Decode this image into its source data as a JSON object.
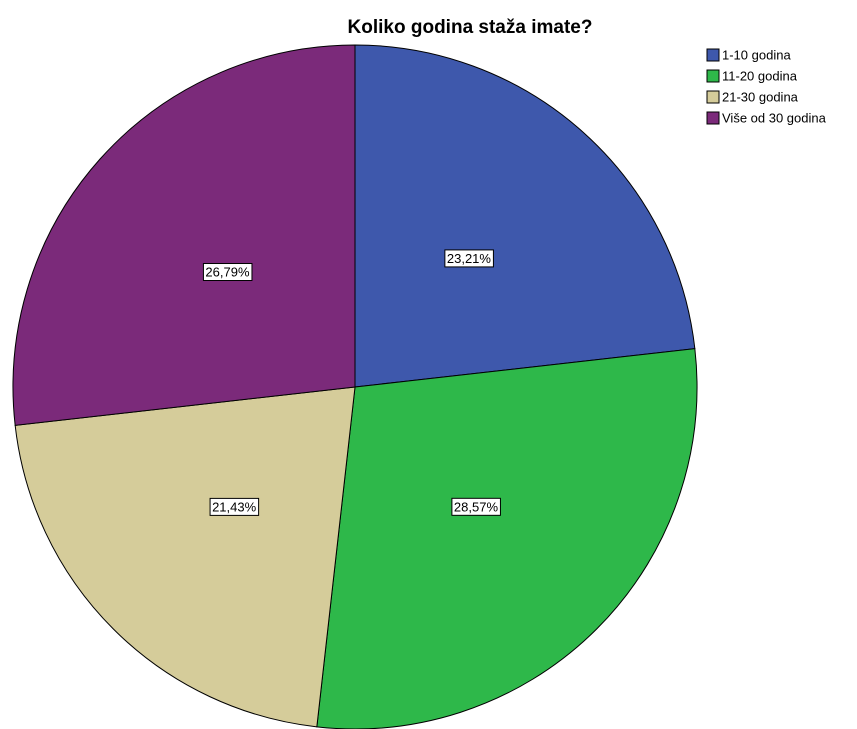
{
  "chart_data": {
    "type": "pie",
    "title": "Koliko godina staža imate?",
    "categories": [
      "1-10 godina",
      "11-20 godina",
      "21-30 godina",
      "Više od 30 godina"
    ],
    "values": [
      23.21,
      28.57,
      21.43,
      26.79
    ],
    "value_labels": [
      "23,21%",
      "28,57%",
      "21,43%",
      "26,79%"
    ],
    "colors": [
      "#3e58ac",
      "#2eb84a",
      "#d5cc9a",
      "#7b2a7a"
    ],
    "legend": "upper right"
  }
}
